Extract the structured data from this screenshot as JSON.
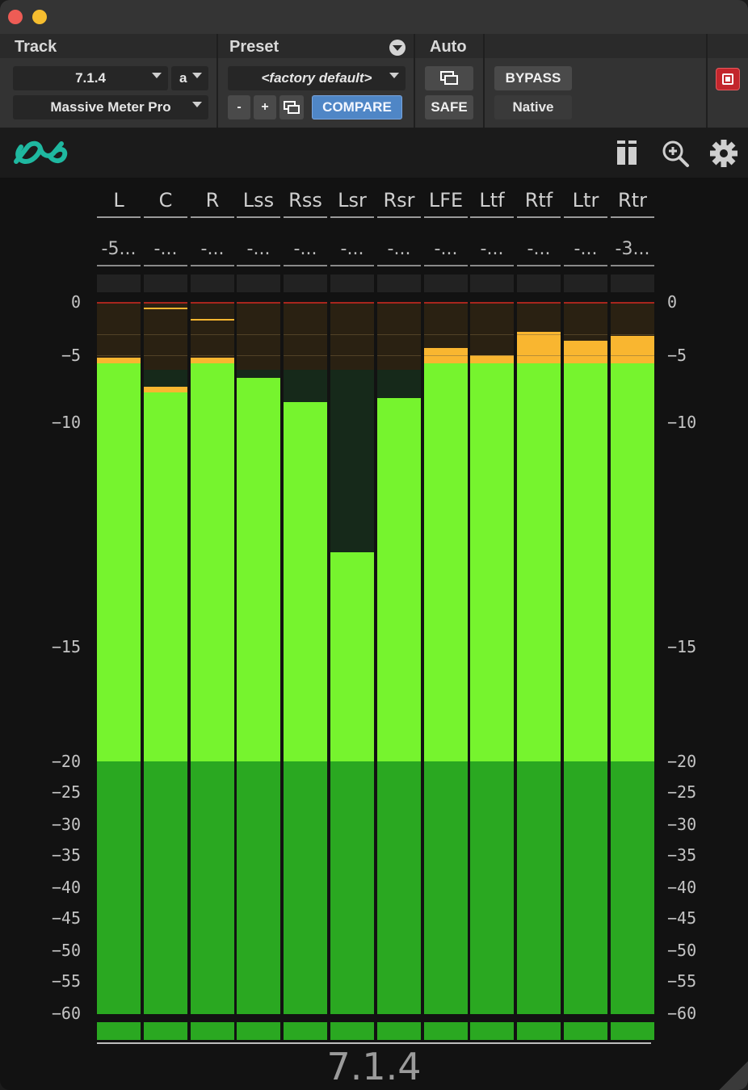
{
  "header": {
    "track_label": "Track",
    "preset_label": "Preset",
    "auto_label": "Auto",
    "track_select": "7.1.4",
    "track_variant": "a",
    "plugin_select": "Massive Meter Pro",
    "preset_select": "<factory default>",
    "minus": "-",
    "plus": "+",
    "compare": "COMPARE",
    "safe": "SAFE",
    "bypass": "BYPASS",
    "native": "Native"
  },
  "toolbar": {
    "logo_icon": "infinity-logo-icon",
    "layout_icon": "layout-columns-icon",
    "zoom_icon": "zoom-in-icon",
    "settings_icon": "gear-icon",
    "accent": "#1fb8a0"
  },
  "meter": {
    "channels": [
      {
        "name": "L",
        "peak": "-5...",
        "level": -5.6,
        "hold": -5.2
      },
      {
        "name": "C",
        "peak": "-...",
        "level": -7.8,
        "hold": -0.5
      },
      {
        "name": "R",
        "peak": "-...",
        "level": -5.6,
        "hold": -1.6
      },
      {
        "name": "Lss",
        "peak": "-...",
        "level": -6.7,
        "hold": -6.7
      },
      {
        "name": "Rss",
        "peak": "-...",
        "level": -8.5,
        "hold": -8.5
      },
      {
        "name": "Lsr",
        "peak": "-...",
        "level": -12.9,
        "hold": -12.9
      },
      {
        "name": "Rsr",
        "peak": "-...",
        "level": -8.2,
        "hold": -8.2
      },
      {
        "name": "LFE",
        "peak": "-...",
        "level": -5.6,
        "hold": -4.3
      },
      {
        "name": "Ltf",
        "peak": "-...",
        "level": -5.6,
        "hold": -5.0
      },
      {
        "name": "Rtf",
        "peak": "-...",
        "level": -5.6,
        "hold": -2.8
      },
      {
        "name": "Ltr",
        "peak": "-...",
        "level": -5.6,
        "hold": -3.6
      },
      {
        "name": "Rtr",
        "peak": "-3...",
        "level": -5.6,
        "hold": -3.2
      }
    ],
    "scale": [
      "0",
      "-5",
      "-10",
      "-15",
      "-20",
      "-25",
      "-30",
      "-35",
      "-40",
      "-45",
      "-50",
      "-55",
      "-60"
    ],
    "colors": {
      "bright_green": "#76f42e",
      "dark_green": "#2aa821",
      "orange": "#f9b630",
      "dim_green": "#16291a",
      "headroom": "#2a2112",
      "red_line": "#a8261e"
    },
    "format_label": "7.1.4"
  }
}
